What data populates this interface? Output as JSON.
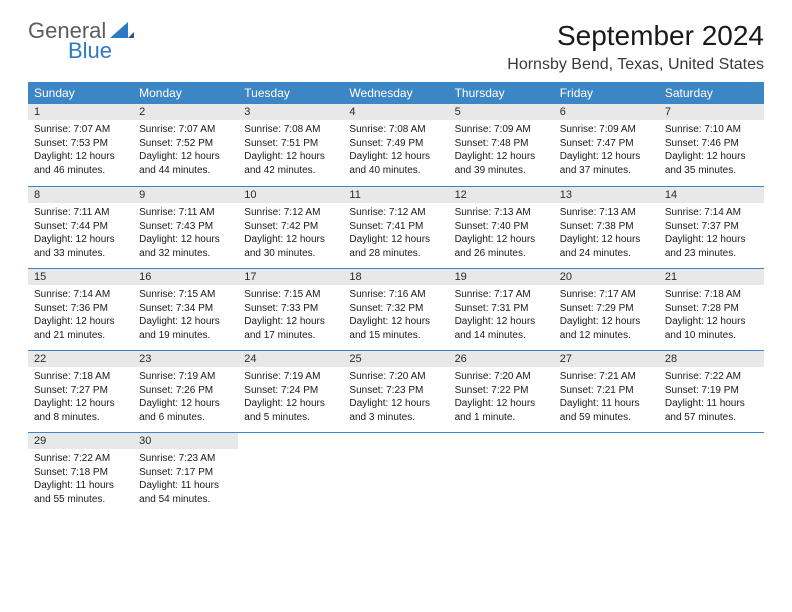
{
  "brand": {
    "part1": "General",
    "part2": "Blue",
    "icon_color": "#2f78c4"
  },
  "title": "September 2024",
  "location": "Hornsby Bend, Texas, United States",
  "colors": {
    "header_bg": "#3d86c6",
    "header_fg": "#ffffff",
    "daynum_bg": "#e8e8e8",
    "rule": "#3d86c6",
    "text": "#1a1a1a",
    "logo_gray": "#5c5c5c",
    "logo_blue": "#2f78c4"
  },
  "typography": {
    "title_size_pt": 21,
    "location_size_pt": 12,
    "col_header_size_pt": 9,
    "daynum_size_pt": 8,
    "body_size_pt": 7.5,
    "family": "Arial"
  },
  "columns": [
    "Sunday",
    "Monday",
    "Tuesday",
    "Wednesday",
    "Thursday",
    "Friday",
    "Saturday"
  ],
  "weeks": [
    [
      {
        "n": "1",
        "sunrise": "7:07 AM",
        "sunset": "7:53 PM",
        "daylight": "12 hours and 46 minutes."
      },
      {
        "n": "2",
        "sunrise": "7:07 AM",
        "sunset": "7:52 PM",
        "daylight": "12 hours and 44 minutes."
      },
      {
        "n": "3",
        "sunrise": "7:08 AM",
        "sunset": "7:51 PM",
        "daylight": "12 hours and 42 minutes."
      },
      {
        "n": "4",
        "sunrise": "7:08 AM",
        "sunset": "7:49 PM",
        "daylight": "12 hours and 40 minutes."
      },
      {
        "n": "5",
        "sunrise": "7:09 AM",
        "sunset": "7:48 PM",
        "daylight": "12 hours and 39 minutes."
      },
      {
        "n": "6",
        "sunrise": "7:09 AM",
        "sunset": "7:47 PM",
        "daylight": "12 hours and 37 minutes."
      },
      {
        "n": "7",
        "sunrise": "7:10 AM",
        "sunset": "7:46 PM",
        "daylight": "12 hours and 35 minutes."
      }
    ],
    [
      {
        "n": "8",
        "sunrise": "7:11 AM",
        "sunset": "7:44 PM",
        "daylight": "12 hours and 33 minutes."
      },
      {
        "n": "9",
        "sunrise": "7:11 AM",
        "sunset": "7:43 PM",
        "daylight": "12 hours and 32 minutes."
      },
      {
        "n": "10",
        "sunrise": "7:12 AM",
        "sunset": "7:42 PM",
        "daylight": "12 hours and 30 minutes."
      },
      {
        "n": "11",
        "sunrise": "7:12 AM",
        "sunset": "7:41 PM",
        "daylight": "12 hours and 28 minutes."
      },
      {
        "n": "12",
        "sunrise": "7:13 AM",
        "sunset": "7:40 PM",
        "daylight": "12 hours and 26 minutes."
      },
      {
        "n": "13",
        "sunrise": "7:13 AM",
        "sunset": "7:38 PM",
        "daylight": "12 hours and 24 minutes."
      },
      {
        "n": "14",
        "sunrise": "7:14 AM",
        "sunset": "7:37 PM",
        "daylight": "12 hours and 23 minutes."
      }
    ],
    [
      {
        "n": "15",
        "sunrise": "7:14 AM",
        "sunset": "7:36 PM",
        "daylight": "12 hours and 21 minutes."
      },
      {
        "n": "16",
        "sunrise": "7:15 AM",
        "sunset": "7:34 PM",
        "daylight": "12 hours and 19 minutes."
      },
      {
        "n": "17",
        "sunrise": "7:15 AM",
        "sunset": "7:33 PM",
        "daylight": "12 hours and 17 minutes."
      },
      {
        "n": "18",
        "sunrise": "7:16 AM",
        "sunset": "7:32 PM",
        "daylight": "12 hours and 15 minutes."
      },
      {
        "n": "19",
        "sunrise": "7:17 AM",
        "sunset": "7:31 PM",
        "daylight": "12 hours and 14 minutes."
      },
      {
        "n": "20",
        "sunrise": "7:17 AM",
        "sunset": "7:29 PM",
        "daylight": "12 hours and 12 minutes."
      },
      {
        "n": "21",
        "sunrise": "7:18 AM",
        "sunset": "7:28 PM",
        "daylight": "12 hours and 10 minutes."
      }
    ],
    [
      {
        "n": "22",
        "sunrise": "7:18 AM",
        "sunset": "7:27 PM",
        "daylight": "12 hours and 8 minutes."
      },
      {
        "n": "23",
        "sunrise": "7:19 AM",
        "sunset": "7:26 PM",
        "daylight": "12 hours and 6 minutes."
      },
      {
        "n": "24",
        "sunrise": "7:19 AM",
        "sunset": "7:24 PM",
        "daylight": "12 hours and 5 minutes."
      },
      {
        "n": "25",
        "sunrise": "7:20 AM",
        "sunset": "7:23 PM",
        "daylight": "12 hours and 3 minutes."
      },
      {
        "n": "26",
        "sunrise": "7:20 AM",
        "sunset": "7:22 PM",
        "daylight": "12 hours and 1 minute."
      },
      {
        "n": "27",
        "sunrise": "7:21 AM",
        "sunset": "7:21 PM",
        "daylight": "11 hours and 59 minutes."
      },
      {
        "n": "28",
        "sunrise": "7:22 AM",
        "sunset": "7:19 PM",
        "daylight": "11 hours and 57 minutes."
      }
    ],
    [
      {
        "n": "29",
        "sunrise": "7:22 AM",
        "sunset": "7:18 PM",
        "daylight": "11 hours and 55 minutes."
      },
      {
        "n": "30",
        "sunrise": "7:23 AM",
        "sunset": "7:17 PM",
        "daylight": "11 hours and 54 minutes."
      },
      null,
      null,
      null,
      null,
      null
    ]
  ],
  "labels": {
    "sunrise": "Sunrise:",
    "sunset": "Sunset:",
    "daylight": "Daylight:"
  }
}
